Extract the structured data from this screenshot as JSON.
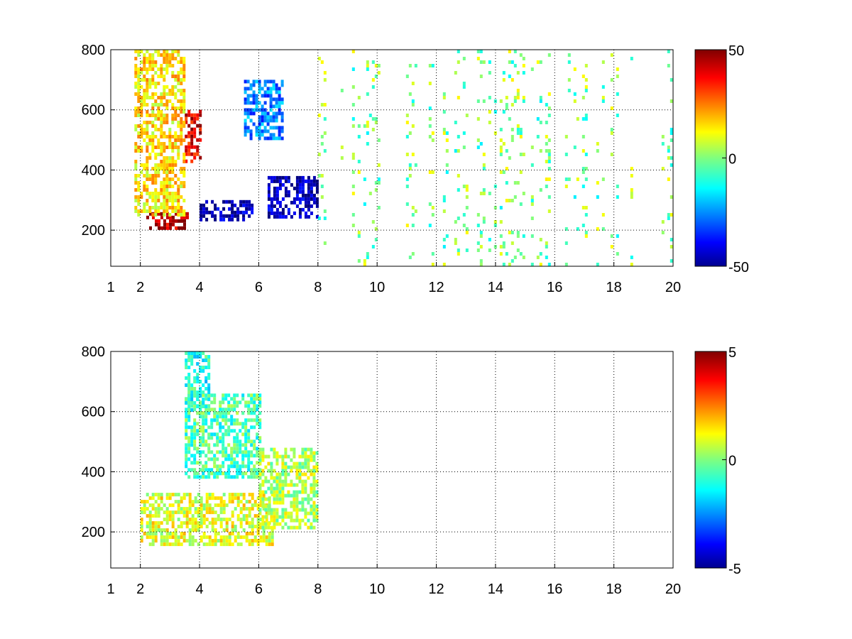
{
  "chart_data": [
    {
      "type": "heatmap",
      "title": "",
      "xlabel": "",
      "ylabel": "",
      "xlim": [
        1,
        20
      ],
      "ylim": [
        80,
        800
      ],
      "x_ticks": [
        1,
        2,
        4,
        6,
        8,
        10,
        12,
        14,
        16,
        18,
        20
      ],
      "y_ticks": [
        200,
        400,
        600,
        800
      ],
      "grid": true,
      "colorbar": {
        "min": -50,
        "max": 50,
        "ticks": [
          50,
          0,
          -50
        ],
        "colormap": "jet"
      },
      "regions": [
        {
          "x_range": [
            2.2,
            3.6
          ],
          "y_range": [
            210,
            260
          ],
          "value": 45
        },
        {
          "x_range": [
            3.5,
            4.0
          ],
          "y_range": [
            430,
            600
          ],
          "value": 40
        },
        {
          "x_range": [
            4.0,
            5.8
          ],
          "y_range": [
            240,
            300
          ],
          "value": -45
        },
        {
          "x_range": [
            6.3,
            8.0
          ],
          "y_range": [
            250,
            380
          ],
          "value": -45
        },
        {
          "x_range": [
            5.5,
            6.8
          ],
          "y_range": [
            500,
            700
          ],
          "value": -25
        },
        {
          "x_range": [
            1.8,
            3.5
          ],
          "y_range": [
            250,
            800
          ],
          "value": 15
        },
        {
          "x_range": [
            8.0,
            20.0
          ],
          "y_range": [
            80,
            800
          ],
          "value": 0,
          "sparse": true
        }
      ]
    },
    {
      "type": "heatmap",
      "title": "",
      "xlabel": "",
      "ylabel": "",
      "xlim": [
        1,
        20
      ],
      "ylim": [
        80,
        800
      ],
      "x_ticks": [
        1,
        2,
        4,
        6,
        8,
        10,
        12,
        14,
        16,
        18,
        20
      ],
      "y_ticks": [
        200,
        400,
        600,
        800
      ],
      "grid": true,
      "colorbar": {
        "min": -5,
        "max": 5,
        "ticks": [
          5,
          0,
          -5
        ],
        "colormap": "jet"
      },
      "regions": [
        {
          "x_range": [
            2.0,
            6.5
          ],
          "y_range": [
            160,
            330
          ],
          "value": 1.0
        },
        {
          "x_range": [
            3.5,
            6.0
          ],
          "y_range": [
            380,
            660
          ],
          "value": -0.5
        },
        {
          "x_range": [
            6.0,
            8.0
          ],
          "y_range": [
            220,
            480
          ],
          "value": 0.5
        },
        {
          "x_range": [
            3.5,
            4.3
          ],
          "y_range": [
            600,
            800
          ],
          "value": -1.0
        }
      ]
    }
  ]
}
